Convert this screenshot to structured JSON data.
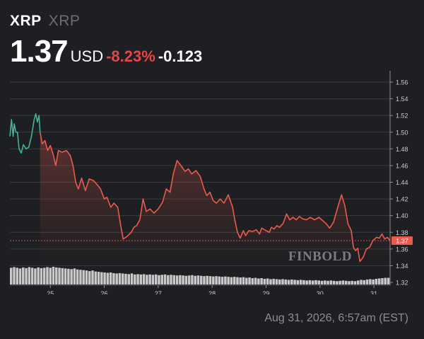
{
  "header": {
    "ticker": "XRP",
    "ticker_sub": "XRP",
    "price": "1.37",
    "currency": "USD",
    "change_pct": "-8.23%",
    "change_abs": "-0.123"
  },
  "timestamp": "Aug 31, 2026, 6:57am (EST)",
  "watermark": "FINBOLD",
  "colors": {
    "background": "#1e1f22",
    "up": "#3fb49a",
    "down": "#ec5a4e",
    "grid": "#3a3b3f",
    "volume": "#d8d8d8",
    "price_tag": "#ec5a4e"
  },
  "chart_data": {
    "type": "line",
    "x_ticks": [
      "25",
      "26",
      "27",
      "28",
      "29",
      "30",
      "31"
    ],
    "y_ticks": [
      "1.56",
      "1.54",
      "1.52",
      "1.50",
      "1.48",
      "1.46",
      "1.44",
      "1.42",
      "1.40",
      "1.38",
      "1.36",
      "1.34",
      "1.32"
    ],
    "ylim": [
      1.32,
      1.56
    ],
    "xlim": [
      24.25,
      31.3
    ],
    "reference_line": 1.37,
    "current_price_label": "1.37",
    "grid": true,
    "series": [
      {
        "points": [
          [
            24.25,
            1.495
          ],
          [
            24.28,
            1.515
          ],
          [
            24.31,
            1.495
          ],
          [
            24.33,
            1.51
          ],
          [
            24.36,
            1.5
          ],
          [
            24.39,
            1.5
          ],
          [
            24.42,
            1.48
          ],
          [
            24.46,
            1.475
          ],
          [
            24.5,
            1.485
          ],
          [
            24.55,
            1.48
          ],
          [
            24.6,
            1.482
          ],
          [
            24.65,
            1.495
          ],
          [
            24.7,
            1.515
          ],
          [
            24.73,
            1.522
          ],
          [
            24.76,
            1.512
          ],
          [
            24.79,
            1.52
          ],
          [
            24.81,
            1.5
          ],
          [
            24.85,
            1.486
          ],
          [
            24.9,
            1.49
          ],
          [
            24.95,
            1.478
          ],
          [
            25.0,
            1.484
          ],
          [
            25.05,
            1.474
          ],
          [
            25.1,
            1.46
          ],
          [
            25.15,
            1.478
          ],
          [
            25.22,
            1.476
          ],
          [
            25.3,
            1.478
          ],
          [
            25.37,
            1.472
          ],
          [
            25.42,
            1.46
          ],
          [
            25.47,
            1.44
          ],
          [
            25.52,
            1.432
          ],
          [
            25.58,
            1.445
          ],
          [
            25.65,
            1.43
          ],
          [
            25.72,
            1.444
          ],
          [
            25.8,
            1.442
          ],
          [
            25.87,
            1.437
          ],
          [
            25.93,
            1.432
          ],
          [
            26.0,
            1.42
          ],
          [
            26.05,
            1.422
          ],
          [
            26.12,
            1.41
          ],
          [
            26.18,
            1.415
          ],
          [
            26.25,
            1.41
          ],
          [
            26.3,
            1.39
          ],
          [
            26.35,
            1.372
          ],
          [
            26.42,
            1.375
          ],
          [
            26.5,
            1.38
          ],
          [
            26.55,
            1.386
          ],
          [
            26.6,
            1.388
          ],
          [
            26.66,
            1.395
          ],
          [
            26.72,
            1.42
          ],
          [
            26.78,
            1.405
          ],
          [
            26.85,
            1.408
          ],
          [
            26.92,
            1.403
          ],
          [
            27.0,
            1.408
          ],
          [
            27.08,
            1.416
          ],
          [
            27.15,
            1.432
          ],
          [
            27.22,
            1.428
          ],
          [
            27.28,
            1.45
          ],
          [
            27.35,
            1.466
          ],
          [
            27.42,
            1.46
          ],
          [
            27.5,
            1.453
          ],
          [
            27.56,
            1.456
          ],
          [
            27.62,
            1.45
          ],
          [
            27.7,
            1.454
          ],
          [
            27.78,
            1.447
          ],
          [
            27.85,
            1.432
          ],
          [
            27.9,
            1.424
          ],
          [
            27.96,
            1.428
          ],
          [
            28.02,
            1.418
          ],
          [
            28.08,
            1.415
          ],
          [
            28.15,
            1.42
          ],
          [
            28.22,
            1.415
          ],
          [
            28.3,
            1.425
          ],
          [
            28.38,
            1.41
          ],
          [
            28.42,
            1.395
          ],
          [
            28.47,
            1.38
          ],
          [
            28.52,
            1.373
          ],
          [
            28.58,
            1.382
          ],
          [
            28.62,
            1.376
          ],
          [
            28.68,
            1.382
          ],
          [
            28.75,
            1.381
          ],
          [
            28.82,
            1.383
          ],
          [
            28.88,
            1.378
          ],
          [
            28.92,
            1.385
          ],
          [
            29.0,
            1.382
          ],
          [
            29.06,
            1.38
          ],
          [
            29.1,
            1.386
          ],
          [
            29.15,
            1.384
          ],
          [
            29.2,
            1.388
          ],
          [
            29.25,
            1.386
          ],
          [
            29.32,
            1.391
          ],
          [
            29.38,
            1.402
          ],
          [
            29.44,
            1.395
          ],
          [
            29.5,
            1.398
          ],
          [
            29.56,
            1.395
          ],
          [
            29.62,
            1.399
          ],
          [
            29.68,
            1.396
          ],
          [
            29.75,
            1.395
          ],
          [
            29.82,
            1.398
          ],
          [
            29.9,
            1.395
          ],
          [
            29.98,
            1.398
          ],
          [
            30.05,
            1.394
          ],
          [
            30.12,
            1.39
          ],
          [
            30.18,
            1.385
          ],
          [
            30.25,
            1.392
          ],
          [
            30.33,
            1.41
          ],
          [
            30.4,
            1.425
          ],
          [
            30.46,
            1.412
          ],
          [
            30.52,
            1.39
          ],
          [
            30.58,
            1.382
          ],
          [
            30.62,
            1.362
          ],
          [
            30.66,
            1.358
          ],
          [
            30.7,
            1.361
          ],
          [
            30.74,
            1.345
          ],
          [
            30.8,
            1.35
          ],
          [
            30.86,
            1.36
          ],
          [
            30.92,
            1.362
          ],
          [
            30.98,
            1.37
          ],
          [
            31.05,
            1.374
          ],
          [
            31.1,
            1.373
          ],
          [
            31.15,
            1.378
          ],
          [
            31.2,
            1.372
          ],
          [
            31.25,
            1.374
          ],
          [
            31.3,
            1.37
          ]
        ]
      }
    ],
    "volume": [
      0.5,
      0.52,
      0.5,
      0.48,
      0.51,
      0.49,
      0.52,
      0.5,
      0.48,
      0.51,
      0.49,
      0.5,
      0.52,
      0.5,
      0.53,
      0.51,
      0.5,
      0.49,
      0.48,
      0.47,
      0.46,
      0.48,
      0.45,
      0.44,
      0.43,
      0.42,
      0.4,
      0.42,
      0.39,
      0.38,
      0.37,
      0.36,
      0.35,
      0.36,
      0.34,
      0.33,
      0.34,
      0.33,
      0.32,
      0.31,
      0.33,
      0.3,
      0.31,
      0.3,
      0.31,
      0.29,
      0.3,
      0.29,
      0.3,
      0.28,
      0.29,
      0.3,
      0.28,
      0.29,
      0.28,
      0.27,
      0.28,
      0.27,
      0.26,
      0.27,
      0.28,
      0.26,
      0.27,
      0.26,
      0.25,
      0.26,
      0.25,
      0.24,
      0.25,
      0.24,
      0.23,
      0.24,
      0.23,
      0.22,
      0.23,
      0.22,
      0.21,
      0.22,
      0.2,
      0.21,
      0.19,
      0.2,
      0.18,
      0.19,
      0.17,
      0.18,
      0.16,
      0.17,
      0.16,
      0.15,
      0.16,
      0.15,
      0.14,
      0.15,
      0.14,
      0.13,
      0.14,
      0.13,
      0.12,
      0.13,
      0.12,
      0.13,
      0.12,
      0.11,
      0.12,
      0.11,
      0.12,
      0.11,
      0.1,
      0.11,
      0.12,
      0.11,
      0.1,
      0.11,
      0.1,
      0.12,
      0.14,
      0.13,
      0.15,
      0.16,
      0.15,
      0.17,
      0.18,
      0.19,
      0.2,
      0.2
    ]
  }
}
